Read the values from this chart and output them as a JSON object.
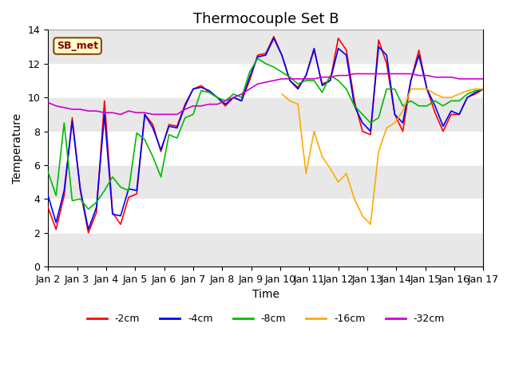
{
  "title": "Thermocouple Set B",
  "xlabel": "Time",
  "ylabel": "Temperature",
  "xlim": [
    0,
    15
  ],
  "ylim": [
    0,
    14
  ],
  "yticks": [
    0,
    2,
    4,
    6,
    8,
    10,
    12,
    14
  ],
  "xtick_labels": [
    "Jan 2",
    "Jan 3",
    "Jan 4",
    "Jan 5",
    "Jan 6",
    "Jan 7",
    "Jan 8",
    "Jan 9",
    "Jan 10",
    "Jan 11",
    "Jan 12",
    "Jan 13",
    "Jan 14",
    "Jan 15",
    "Jan 16",
    "Jan 17"
  ],
  "annotation_text": "SB_met",
  "line_colors": {
    "-2cm": "#ff0000",
    "-4cm": "#0000ff",
    "-8cm": "#00bb00",
    "-16cm": "#ffaa00",
    "-32cm": "#cc00cc"
  },
  "series": {
    "-2cm": [
      3.5,
      2.2,
      4.2,
      8.8,
      4.5,
      2.0,
      3.2,
      9.8,
      3.2,
      2.5,
      4.1,
      4.3,
      9.0,
      8.4,
      6.8,
      8.4,
      8.3,
      9.6,
      10.5,
      10.7,
      10.3,
      10.0,
      9.5,
      10.0,
      9.8,
      11.0,
      12.5,
      12.6,
      13.6,
      12.5,
      11.0,
      10.6,
      11.3,
      12.8,
      10.8,
      11.0,
      13.5,
      12.8,
      9.8,
      8.0,
      7.8,
      13.4,
      12.0,
      9.0,
      8.0,
      11.0,
      12.8,
      10.5,
      9.1,
      8.0,
      9.0,
      9.0,
      10.0,
      10.2,
      10.5
    ],
    "-4cm": [
      4.2,
      2.6,
      4.5,
      8.6,
      4.6,
      2.2,
      3.5,
      9.0,
      3.1,
      3.0,
      4.6,
      4.5,
      9.0,
      8.2,
      6.9,
      8.3,
      8.2,
      9.5,
      10.5,
      10.6,
      10.4,
      10.0,
      9.6,
      10.0,
      9.8,
      11.2,
      12.4,
      12.5,
      13.5,
      12.5,
      11.0,
      10.5,
      11.3,
      12.9,
      10.7,
      11.0,
      12.9,
      12.5,
      9.5,
      8.5,
      8.0,
      13.0,
      12.5,
      9.0,
      8.5,
      11.0,
      12.5,
      10.5,
      9.5,
      8.3,
      9.2,
      9.0,
      10.0,
      10.3,
      10.5
    ],
    "-8cm": [
      5.6,
      4.2,
      8.5,
      3.9,
      4.0,
      3.4,
      3.8,
      4.5,
      5.3,
      4.7,
      4.5,
      7.9,
      7.5,
      6.5,
      5.3,
      7.8,
      7.6,
      8.8,
      9.0,
      10.4,
      10.3,
      10.0,
      9.8,
      10.2,
      10.0,
      11.5,
      12.3,
      12.0,
      11.8,
      11.5,
      11.2,
      10.8,
      11.0,
      11.0,
      10.3,
      11.3,
      11.0,
      10.5,
      9.5,
      9.0,
      8.5,
      8.8,
      10.5,
      10.5,
      9.5,
      9.8,
      9.5,
      9.5,
      9.8,
      9.5,
      9.8,
      9.8,
      10.2,
      10.4,
      10.5
    ],
    "-16cm": [
      null,
      null,
      null,
      null,
      null,
      null,
      null,
      null,
      null,
      null,
      null,
      null,
      null,
      null,
      null,
      null,
      null,
      null,
      null,
      null,
      null,
      null,
      null,
      null,
      null,
      null,
      null,
      null,
      null,
      10.2,
      9.8,
      9.6,
      5.5,
      8.0,
      6.5,
      5.8,
      5.0,
      5.5,
      4.0,
      3.0,
      2.5,
      6.8,
      8.2,
      8.5,
      9.2,
      10.5,
      10.5,
      10.5,
      10.2,
      10.0,
      10.0,
      10.2,
      10.4,
      10.5,
      10.5
    ],
    "-32cm": [
      9.7,
      9.5,
      9.4,
      9.3,
      9.3,
      9.2,
      9.2,
      9.1,
      9.1,
      9.0,
      9.2,
      9.1,
      9.1,
      9.0,
      9.0,
      9.0,
      9.0,
      9.3,
      9.5,
      9.5,
      9.6,
      9.6,
      9.8,
      10.0,
      10.2,
      10.5,
      10.8,
      10.9,
      11.0,
      11.1,
      11.1,
      11.1,
      11.1,
      11.1,
      11.2,
      11.2,
      11.3,
      11.3,
      11.4,
      11.4,
      11.4,
      11.4,
      11.4,
      11.4,
      11.4,
      11.4,
      11.3,
      11.3,
      11.2,
      11.2,
      11.2,
      11.1,
      11.1,
      11.1,
      11.1
    ]
  },
  "background_bands": [
    {
      "ymin": 0,
      "ymax": 2,
      "color": "#e8e8e8"
    },
    {
      "ymin": 4,
      "ymax": 6,
      "color": "#e8e8e8"
    },
    {
      "ymin": 8,
      "ymax": 10,
      "color": "#e8e8e8"
    },
    {
      "ymin": 12,
      "ymax": 14,
      "color": "#e8e8e8"
    }
  ],
  "title_fontsize": 13,
  "label_fontsize": 10,
  "tick_fontsize": 9
}
